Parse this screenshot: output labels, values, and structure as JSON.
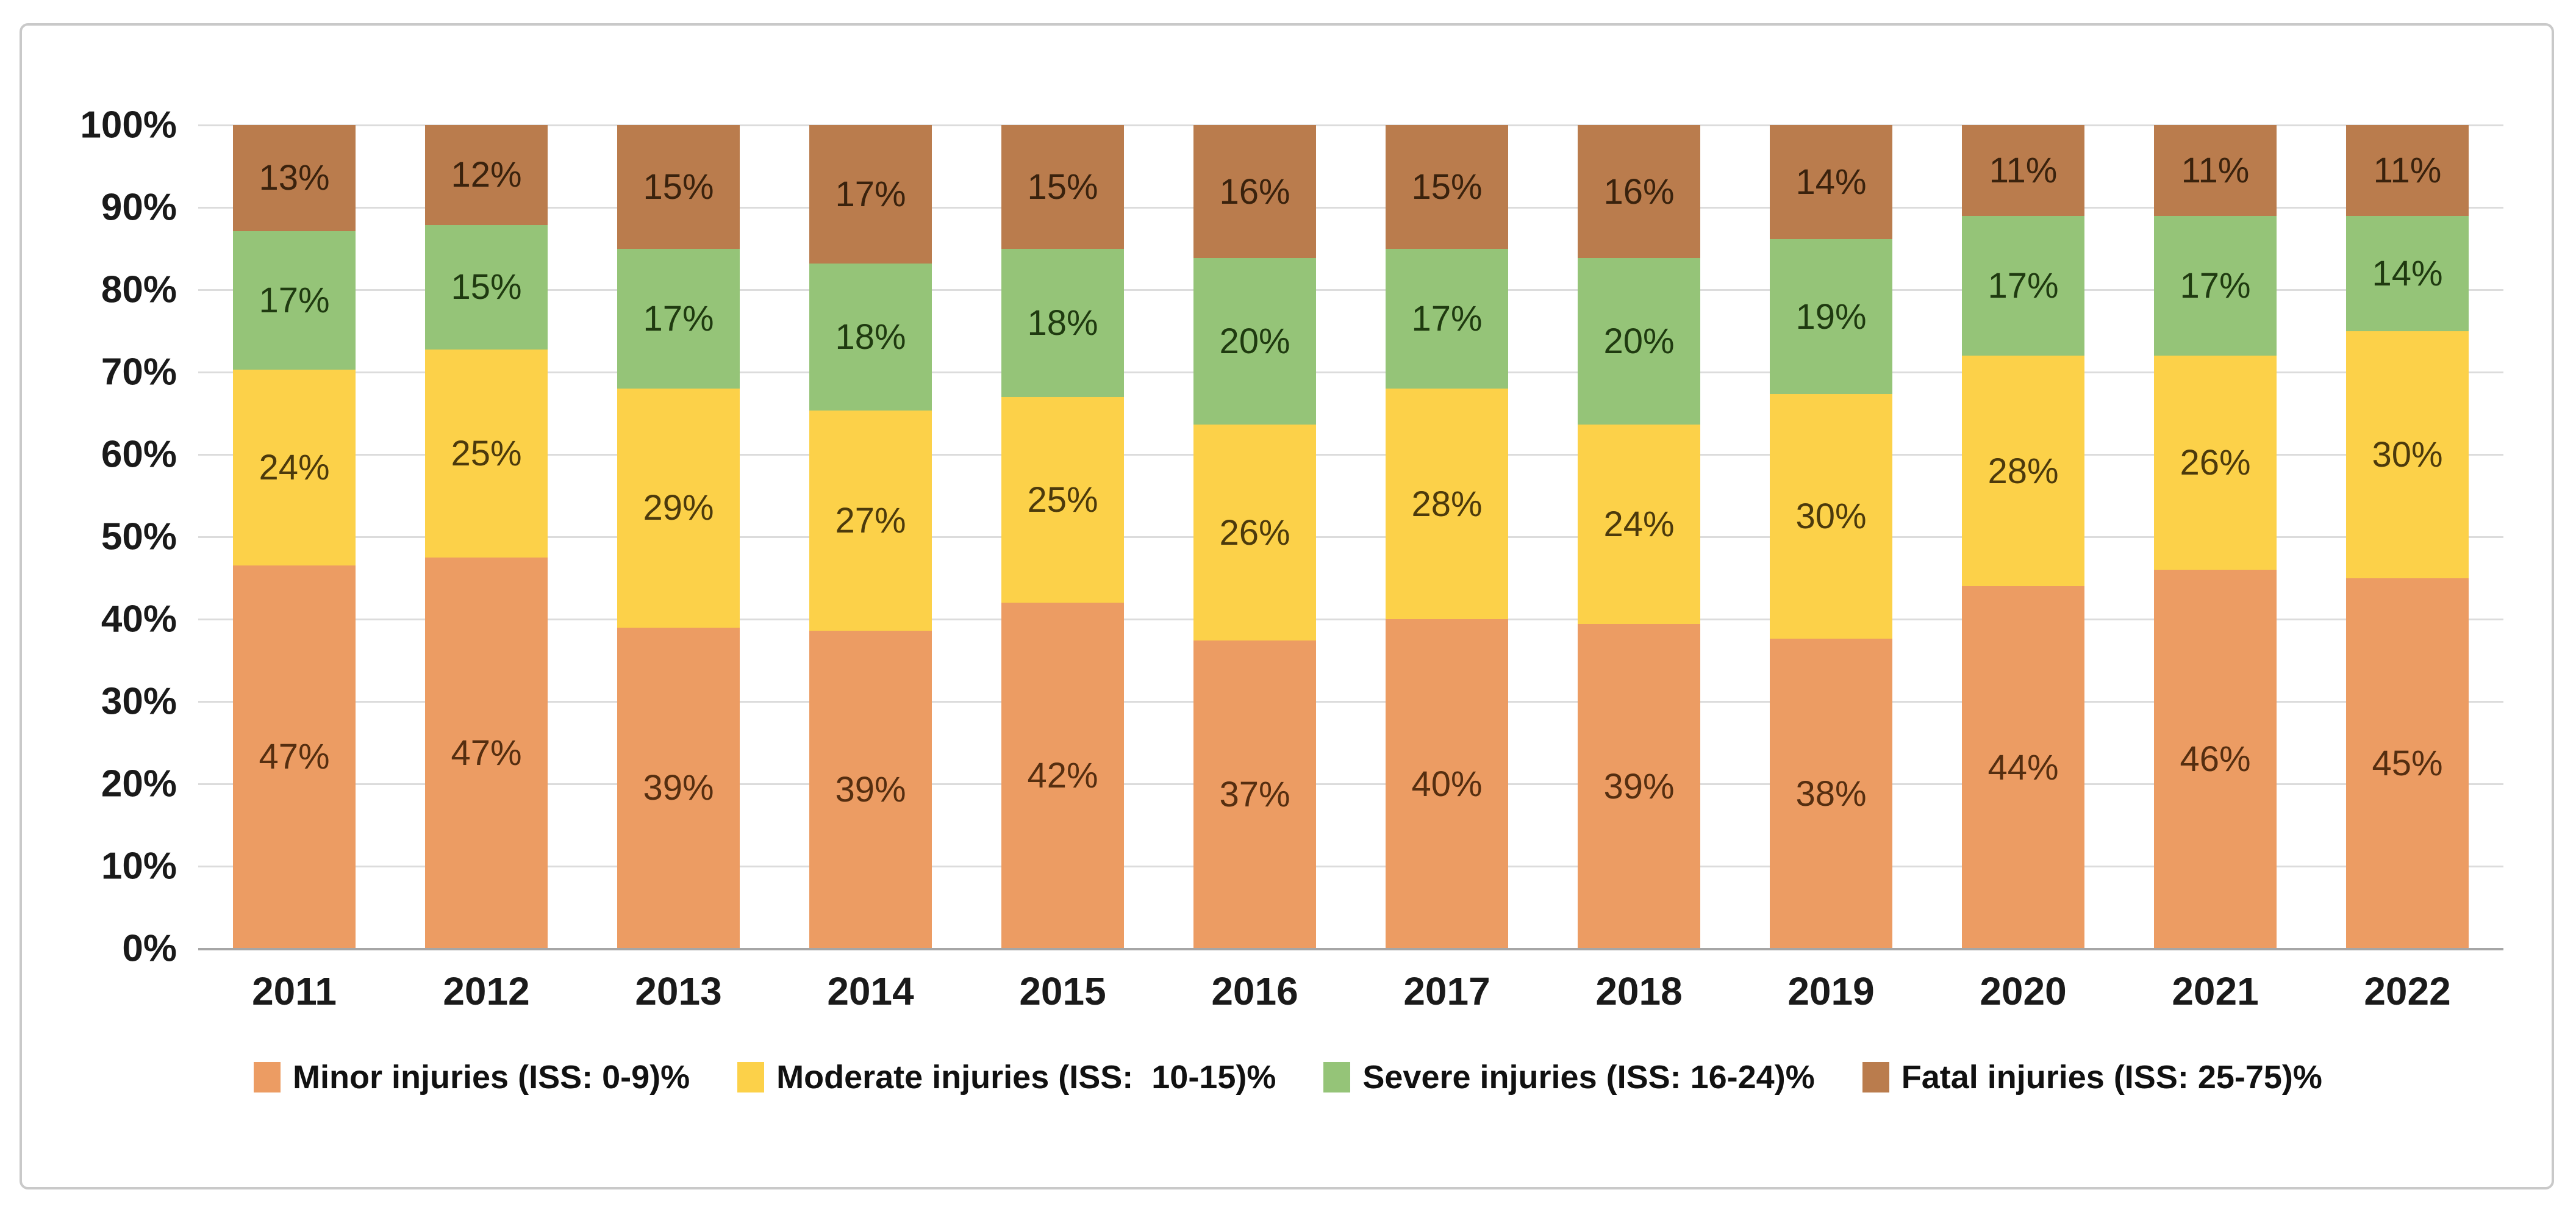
{
  "figure": {
    "background": "#ffffff",
    "border_color": "#c9c9c9",
    "gridline_color": "#dcdcdc",
    "baseline_color": "#a6a6a6",
    "axis_text_color": "#1a1a1a"
  },
  "chart_data": {
    "type": "bar",
    "stacked": true,
    "percent_stacked": true,
    "title": "",
    "xlabel": "",
    "ylabel": "",
    "categories": [
      "2011",
      "2012",
      "2013",
      "2014",
      "2015",
      "2016",
      "2017",
      "2018",
      "2019",
      "2020",
      "2021",
      "2022"
    ],
    "series": [
      {
        "key": "minor",
        "name": "Minor injuries (ISS: 0-9)%",
        "color": "#EC9C63",
        "label_color": "#552e10",
        "values": [
          47,
          47,
          39,
          39,
          42,
          37,
          40,
          39,
          38,
          44,
          46,
          45
        ]
      },
      {
        "key": "moderate",
        "name": "Moderate injuries (ISS:  10-15)%",
        "color": "#FCD149",
        "label_color": "#4c3a0c",
        "values": [
          24,
          25,
          29,
          27,
          25,
          26,
          28,
          24,
          30,
          28,
          26,
          30
        ]
      },
      {
        "key": "severe",
        "name": "Severe injuries (ISS: 16-24)%",
        "color": "#95C478",
        "label_color": "#1f3a10",
        "values": [
          17,
          15,
          17,
          18,
          18,
          20,
          17,
          20,
          19,
          17,
          17,
          14
        ]
      },
      {
        "key": "fatal",
        "name": "Fatal injuries (ISS: 25-75)%",
        "color": "#BA7C4D",
        "label_color": "#3a220d",
        "values": [
          13,
          12,
          15,
          17,
          15,
          16,
          15,
          16,
          14,
          11,
          11,
          11
        ]
      }
    ],
    "value_suffix": "%",
    "y_ticks": [
      "100%",
      "90%",
      "80%",
      "70%",
      "60%",
      "50%",
      "40%",
      "30%",
      "20%",
      "10%",
      "0%"
    ],
    "ylim": [
      0,
      100
    ],
    "grid": true,
    "legend_position": "bottom"
  }
}
